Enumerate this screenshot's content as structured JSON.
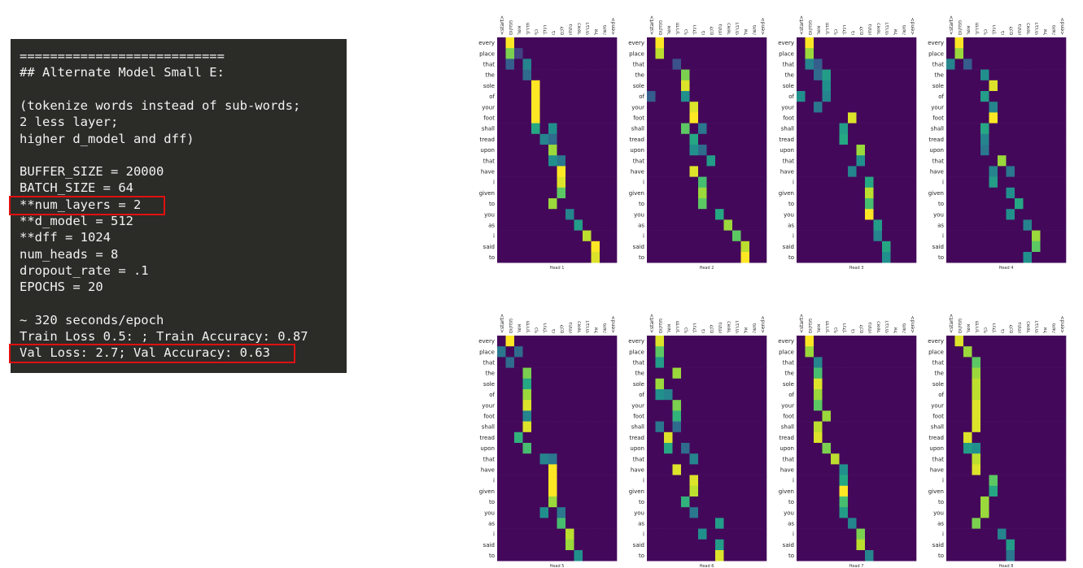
{
  "terminal": {
    "lines": [
      "===========================",
      "## Alternate Model Small E:",
      "",
      "(tokenize words instead of sub-words;",
      "2 less layer;",
      "higher d_model and dff)",
      "",
      "BUFFER_SIZE = 20000",
      "BATCH_SIZE = 64",
      "**num_layers = 2",
      "**d_model = 512",
      "**dff = 1024",
      "num_heads = 8",
      "dropout_rate = .1",
      "EPOCHS = 20",
      "",
      "~ 320 seconds/epoch",
      "Train Loss 0.5: ; Train Accuracy: 0.87",
      "Val Loss: 2.7; Val Accuracy: 0.63"
    ],
    "highlighted_lines": [
      9,
      18
    ],
    "highlight_color": "#e01010",
    "background": "#2b2b28"
  },
  "chart_data": {
    "type": "heatmap",
    "colormap": "viridis",
    "x_tokens": [
      "<start>",
      "ממקום",
      "אשר",
      "תדרוך",
      "כף",
      "רגלך",
      "בו",
      "לכם",
      "נתתיו",
      "כאשר",
      "דברתי",
      "אל",
      "משה",
      "<end>"
    ],
    "y_tokens": [
      "every",
      "place",
      "that",
      "the",
      "sole",
      "of",
      "your",
      "foot",
      "shall",
      "tread",
      "upon",
      "that",
      "have",
      "i",
      "given",
      "to",
      "you",
      "as",
      "i",
      "said",
      "to"
    ],
    "heads": [
      {
        "title": "Head 1",
        "peaks": [
          [
            0,
            1,
            1
          ],
          [
            1,
            1,
            0.8
          ],
          [
            1,
            2,
            0.2
          ],
          [
            2,
            3,
            0.45
          ],
          [
            2,
            1,
            0.3
          ],
          [
            3,
            3,
            0.35
          ],
          [
            4,
            4,
            1
          ],
          [
            5,
            4,
            1
          ],
          [
            6,
            4,
            1
          ],
          [
            7,
            4,
            1
          ],
          [
            8,
            4,
            0.6
          ],
          [
            8,
            6,
            0.5
          ],
          [
            9,
            5,
            0.45
          ],
          [
            9,
            6,
            0.35
          ],
          [
            10,
            6,
            0.85
          ],
          [
            11,
            6,
            0.5
          ],
          [
            11,
            7,
            0.4
          ],
          [
            12,
            7,
            1
          ],
          [
            13,
            7,
            0.95
          ],
          [
            14,
            7,
            0.75
          ],
          [
            15,
            6,
            0.85
          ],
          [
            16,
            8,
            0.45
          ],
          [
            17,
            9,
            0.55
          ],
          [
            18,
            10,
            0.9
          ],
          [
            19,
            11,
            1
          ],
          [
            20,
            11,
            0.95
          ]
        ]
      },
      {
        "title": "Head 2",
        "peaks": [
          [
            0,
            1,
            1
          ],
          [
            1,
            1,
            0.9
          ],
          [
            2,
            3,
            0.25
          ],
          [
            3,
            4,
            0.8
          ],
          [
            4,
            4,
            0.95
          ],
          [
            5,
            0,
            0.3
          ],
          [
            5,
            4,
            0.5
          ],
          [
            6,
            5,
            0.95
          ],
          [
            7,
            5,
            1
          ],
          [
            8,
            4,
            0.75
          ],
          [
            8,
            6,
            0.4
          ],
          [
            9,
            5,
            0.6
          ],
          [
            10,
            5,
            0.5
          ],
          [
            10,
            6,
            0.35
          ],
          [
            11,
            7,
            0.55
          ],
          [
            12,
            5,
            0.95
          ],
          [
            13,
            6,
            0.7
          ],
          [
            14,
            6,
            0.85
          ],
          [
            15,
            6,
            0.75
          ],
          [
            16,
            8,
            0.6
          ],
          [
            17,
            9,
            0.85
          ],
          [
            18,
            10,
            0.75
          ],
          [
            19,
            11,
            0.9
          ],
          [
            20,
            11,
            1
          ]
        ]
      },
      {
        "title": "Head 3",
        "peaks": [
          [
            0,
            1,
            1
          ],
          [
            1,
            1,
            0.85
          ],
          [
            2,
            1,
            0.45
          ],
          [
            2,
            2,
            0.3
          ],
          [
            3,
            3,
            0.55
          ],
          [
            3,
            2,
            0.35
          ],
          [
            4,
            3,
            0.5
          ],
          [
            5,
            0,
            0.5
          ],
          [
            5,
            3,
            0.45
          ],
          [
            6,
            2,
            0.4
          ],
          [
            7,
            6,
            0.95
          ],
          [
            8,
            5,
            0.55
          ],
          [
            9,
            5,
            0.6
          ],
          [
            10,
            7,
            0.85
          ],
          [
            11,
            7,
            0.5
          ],
          [
            12,
            6,
            0.45
          ],
          [
            13,
            8,
            0.6
          ],
          [
            14,
            8,
            0.9
          ],
          [
            15,
            8,
            0.7
          ],
          [
            16,
            8,
            1
          ],
          [
            17,
            9,
            0.55
          ],
          [
            18,
            9,
            0.45
          ],
          [
            19,
            10,
            0.6
          ],
          [
            20,
            10,
            0.5
          ]
        ]
      },
      {
        "title": "Head 4",
        "peaks": [
          [
            0,
            1,
            1
          ],
          [
            1,
            1,
            0.85
          ],
          [
            2,
            0,
            0.45
          ],
          [
            2,
            2,
            0.3
          ],
          [
            3,
            4,
            0.5
          ],
          [
            4,
            5,
            0.95
          ],
          [
            5,
            4,
            0.55
          ],
          [
            6,
            5,
            0.45
          ],
          [
            7,
            5,
            1
          ],
          [
            8,
            4,
            0.6
          ],
          [
            9,
            4,
            0.45
          ],
          [
            10,
            4,
            0.4
          ],
          [
            11,
            6,
            0.85
          ],
          [
            12,
            5,
            0.45
          ],
          [
            12,
            7,
            0.4
          ],
          [
            13,
            5,
            0.55
          ],
          [
            14,
            7,
            0.5
          ],
          [
            15,
            8,
            0.6
          ],
          [
            16,
            7,
            0.5
          ],
          [
            17,
            9,
            0.45
          ],
          [
            18,
            10,
            0.85
          ],
          [
            19,
            10,
            0.75
          ],
          [
            20,
            9,
            0.5
          ]
        ]
      },
      {
        "title": "Head 5",
        "peaks": [
          [
            0,
            1,
            1
          ],
          [
            1,
            0,
            0.4
          ],
          [
            1,
            2,
            0.35
          ],
          [
            2,
            1,
            0.35
          ],
          [
            3,
            3,
            0.8
          ],
          [
            4,
            3,
            0.6
          ],
          [
            5,
            3,
            0.85
          ],
          [
            6,
            3,
            0.95
          ],
          [
            7,
            3,
            0.45
          ],
          [
            8,
            3,
            0.95
          ],
          [
            9,
            2,
            0.65
          ],
          [
            10,
            3,
            0.7
          ],
          [
            11,
            5,
            0.45
          ],
          [
            11,
            6,
            0.4
          ],
          [
            12,
            6,
            1
          ],
          [
            13,
            6,
            1
          ],
          [
            14,
            6,
            1
          ],
          [
            15,
            6,
            0.85
          ],
          [
            16,
            5,
            0.5
          ],
          [
            16,
            7,
            0.4
          ],
          [
            17,
            7,
            0.7
          ],
          [
            18,
            8,
            0.9
          ],
          [
            19,
            8,
            0.85
          ],
          [
            20,
            9,
            0.5
          ]
        ]
      },
      {
        "title": "Head 6",
        "peaks": [
          [
            0,
            1,
            0.95
          ],
          [
            1,
            1,
            0.75
          ],
          [
            2,
            1,
            0.55
          ],
          [
            3,
            3,
            0.85
          ],
          [
            4,
            1,
            0.85
          ],
          [
            5,
            1,
            0.5
          ],
          [
            5,
            2,
            0.45
          ],
          [
            6,
            3,
            0.8
          ],
          [
            7,
            3,
            0.65
          ],
          [
            8,
            1,
            0.4
          ],
          [
            8,
            3,
            0.35
          ],
          [
            9,
            2,
            0.95
          ],
          [
            10,
            2,
            0.6
          ],
          [
            10,
            4,
            0.35
          ],
          [
            11,
            5,
            0.45
          ],
          [
            12,
            3,
            0.95
          ],
          [
            13,
            5,
            0.95
          ],
          [
            14,
            5,
            0.9
          ],
          [
            15,
            4,
            0.65
          ],
          [
            16,
            5,
            0.4
          ],
          [
            17,
            8,
            0.55
          ],
          [
            18,
            6,
            0.5
          ],
          [
            19,
            8,
            0.55
          ],
          [
            20,
            8,
            0.95
          ]
        ]
      },
      {
        "title": "Head 7",
        "peaks": [
          [
            0,
            1,
            1
          ],
          [
            1,
            1,
            0.85
          ],
          [
            2,
            2,
            0.45
          ],
          [
            3,
            2,
            0.7
          ],
          [
            4,
            2,
            0.95
          ],
          [
            5,
            2,
            0.85
          ],
          [
            6,
            2,
            0.75
          ],
          [
            7,
            3,
            0.85
          ],
          [
            8,
            2,
            0.9
          ],
          [
            9,
            2,
            0.95
          ],
          [
            10,
            3,
            0.8
          ],
          [
            11,
            4,
            0.9
          ],
          [
            12,
            5,
            0.5
          ],
          [
            13,
            5,
            0.6
          ],
          [
            14,
            5,
            1
          ],
          [
            15,
            5,
            0.7
          ],
          [
            16,
            5,
            0.55
          ],
          [
            17,
            6,
            0.45
          ],
          [
            18,
            7,
            0.8
          ],
          [
            19,
            7,
            0.9
          ],
          [
            20,
            8,
            0.45
          ]
        ]
      },
      {
        "title": "Head 8",
        "peaks": [
          [
            0,
            1,
            0.95
          ],
          [
            1,
            2,
            0.85
          ],
          [
            2,
            3,
            0.75
          ],
          [
            3,
            3,
            0.85
          ],
          [
            4,
            3,
            0.9
          ],
          [
            5,
            3,
            0.9
          ],
          [
            6,
            3,
            0.95
          ],
          [
            7,
            3,
            0.95
          ],
          [
            8,
            3,
            0.95
          ],
          [
            9,
            2,
            0.95
          ],
          [
            10,
            2,
            0.55
          ],
          [
            10,
            3,
            0.5
          ],
          [
            11,
            3,
            0.9
          ],
          [
            12,
            3,
            0.95
          ],
          [
            13,
            5,
            0.75
          ],
          [
            14,
            5,
            0.6
          ],
          [
            15,
            4,
            0.85
          ],
          [
            16,
            4,
            0.85
          ],
          [
            17,
            3,
            0.8
          ],
          [
            18,
            6,
            0.45
          ],
          [
            19,
            7,
            0.55
          ],
          [
            20,
            7,
            0.4
          ]
        ]
      }
    ]
  }
}
